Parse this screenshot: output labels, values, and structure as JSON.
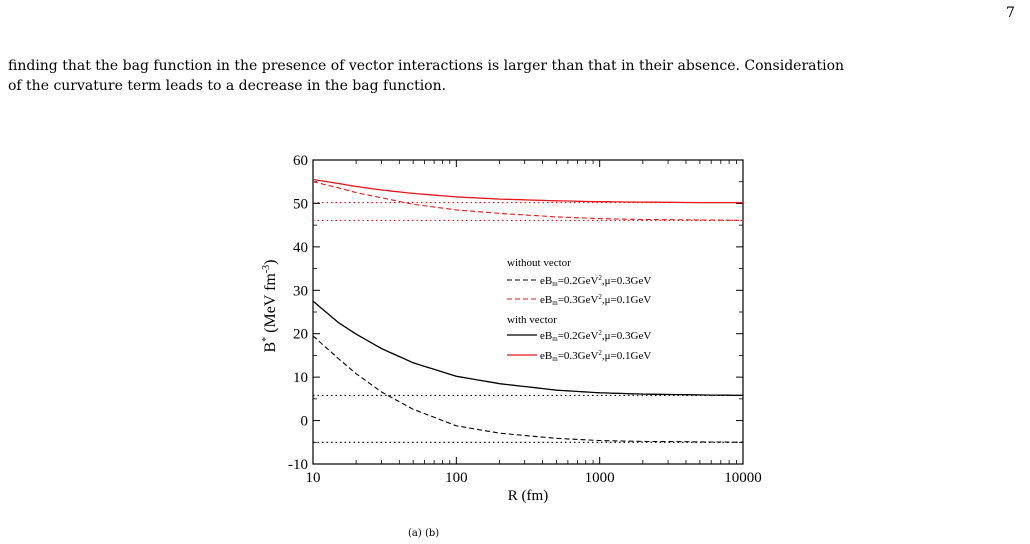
{
  "page": {
    "page_number": "7",
    "paragraph_line1": "finding that the bag function in the presence of vector interactions is larger than that in their absence. Consideration",
    "paragraph_line2": "of the curvature term leads to a decrease in the bag function.",
    "caption_fragment": "(a) (b)"
  },
  "chart_data": {
    "type": "line",
    "xlabel": "R (fm)",
    "ylabel": "B* (MeV fm-3)",
    "x_scale": "log",
    "xlim": [
      10,
      10000
    ],
    "ylim": [
      -10,
      60
    ],
    "x_ticks": [
      10,
      100,
      1000,
      10000
    ],
    "x_tick_labels": [
      "10",
      "100",
      "1000",
      "10000"
    ],
    "y_ticks": [
      -10,
      0,
      10,
      20,
      30,
      40,
      50,
      60
    ],
    "y_tick_labels": [
      "-10",
      "0",
      "10",
      "20",
      "30",
      "40",
      "50",
      "60"
    ],
    "grid": false,
    "legend_position": "center-right",
    "legend": {
      "group1_title": "without vector",
      "group2_title": "with vector",
      "entries": [
        {
          "group": 1,
          "style": "dashed",
          "color": "#000000",
          "label": "eBm=0.2GeV2,μ=0.3GeV"
        },
        {
          "group": 1,
          "style": "dashed",
          "color": "#e8161b",
          "label": "eBm=0.3GeV2,μ=0.1GeV"
        },
        {
          "group": 2,
          "style": "solid",
          "color": "#000000",
          "label": "eBm=0.2GeV2,μ=0.3GeV"
        },
        {
          "group": 2,
          "style": "solid",
          "color": "#e8161b",
          "label": "eBm=0.3GeV2,μ=0.1GeV"
        }
      ]
    },
    "series": [
      {
        "style": "solid",
        "color": "#000000",
        "x": [
          10,
          15,
          20,
          30,
          50,
          100,
          200,
          500,
          1000,
          2000,
          5000,
          10000
        ],
        "y": [
          27.5,
          22.6,
          19.9,
          16.6,
          13.3,
          10.2,
          8.5,
          7.0,
          6.4,
          6.1,
          5.9,
          5.8
        ]
      },
      {
        "style": "dashed",
        "color": "#000000",
        "x": [
          10,
          15,
          20,
          30,
          50,
          100,
          200,
          500,
          1000,
          2000,
          5000,
          10000
        ],
        "y": [
          19.5,
          14.3,
          10.8,
          6.6,
          2.6,
          -1.2,
          -2.9,
          -4.1,
          -4.6,
          -4.8,
          -4.9,
          -5.0
        ]
      },
      {
        "style": "solid",
        "color": "#e8161b",
        "x": [
          10,
          15,
          20,
          30,
          50,
          100,
          200,
          500,
          1000,
          2000,
          5000,
          10000
        ],
        "y": [
          55.5,
          54.6,
          53.9,
          53.1,
          52.3,
          51.5,
          51.0,
          50.6,
          50.4,
          50.3,
          50.2,
          50.2
        ]
      },
      {
        "style": "dashed",
        "color": "#e8161b",
        "x": [
          10,
          15,
          20,
          30,
          50,
          100,
          200,
          500,
          1000,
          2000,
          5000,
          10000
        ],
        "y": [
          55.0,
          53.6,
          52.5,
          51.3,
          49.8,
          48.5,
          47.7,
          46.9,
          46.5,
          46.3,
          46.2,
          46.1
        ]
      },
      {
        "style": "dotted",
        "color": "#000000",
        "x": [
          10,
          10000
        ],
        "y": [
          5.8,
          5.8
        ]
      },
      {
        "style": "dotted",
        "color": "#000000",
        "x": [
          10,
          10000
        ],
        "y": [
          -5.0,
          -5.0
        ]
      },
      {
        "style": "dotted",
        "color": "#e8161b",
        "x": [
          10,
          10000
        ],
        "y": [
          50.2,
          50.2
        ]
      },
      {
        "style": "dotted",
        "color": "#e8161b",
        "x": [
          10,
          10000
        ],
        "y": [
          46.1,
          46.1
        ]
      }
    ]
  }
}
